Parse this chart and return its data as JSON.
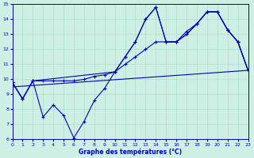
{
  "title": "Graphe des températures (°C)",
  "bg_color": "#cef0e4",
  "line_color": "#0000bb",
  "grid_color": "#aaddcc",
  "xlim": [
    0,
    23
  ],
  "ylim": [
    6,
    15
  ],
  "xticks": [
    0,
    1,
    2,
    3,
    4,
    5,
    6,
    7,
    8,
    9,
    10,
    11,
    12,
    13,
    14,
    15,
    16,
    17,
    18,
    19,
    20,
    21,
    22,
    23
  ],
  "yticks": [
    6,
    7,
    8,
    9,
    10,
    11,
    12,
    13,
    14,
    15
  ],
  "line_min_x": [
    0,
    1,
    2,
    3,
    4,
    5,
    6,
    7,
    8,
    9,
    10,
    11,
    12,
    13,
    14,
    15,
    16,
    17,
    18,
    19,
    20,
    21,
    22,
    23
  ],
  "line_min_y": [
    9.8,
    8.7,
    9.9,
    7.5,
    8.3,
    7.6,
    6.1,
    7.2,
    8.6,
    9.4,
    10.5,
    11.5,
    12.5,
    14.0,
    14.8,
    12.5,
    12.5,
    13.0,
    13.7,
    14.5,
    14.5,
    13.3,
    12.5,
    10.6
  ],
  "line_max_x": [
    0,
    1,
    2,
    10,
    11,
    12,
    13,
    14,
    15,
    16,
    17,
    18,
    19,
    20,
    21,
    22,
    23
  ],
  "line_max_y": [
    9.8,
    8.7,
    9.9,
    10.5,
    11.5,
    12.5,
    14.0,
    14.8,
    12.5,
    12.5,
    13.0,
    13.7,
    14.5,
    14.5,
    13.3,
    12.5,
    10.6
  ],
  "line_avg_x": [
    0,
    1,
    2,
    3,
    4,
    5,
    6,
    7,
    8,
    9,
    10,
    11,
    12,
    13,
    14,
    15,
    16,
    17,
    18,
    19,
    20,
    21,
    22,
    23
  ],
  "line_avg_y": [
    9.8,
    8.7,
    9.9,
    9.9,
    9.9,
    9.9,
    9.9,
    10.0,
    10.2,
    10.3,
    10.5,
    11.0,
    11.5,
    12.0,
    12.5,
    12.5,
    12.5,
    13.2,
    13.7,
    14.5,
    14.5,
    13.3,
    12.5,
    10.6
  ],
  "line_trend_x": [
    0,
    23
  ],
  "line_trend_y": [
    9.5,
    10.6
  ]
}
